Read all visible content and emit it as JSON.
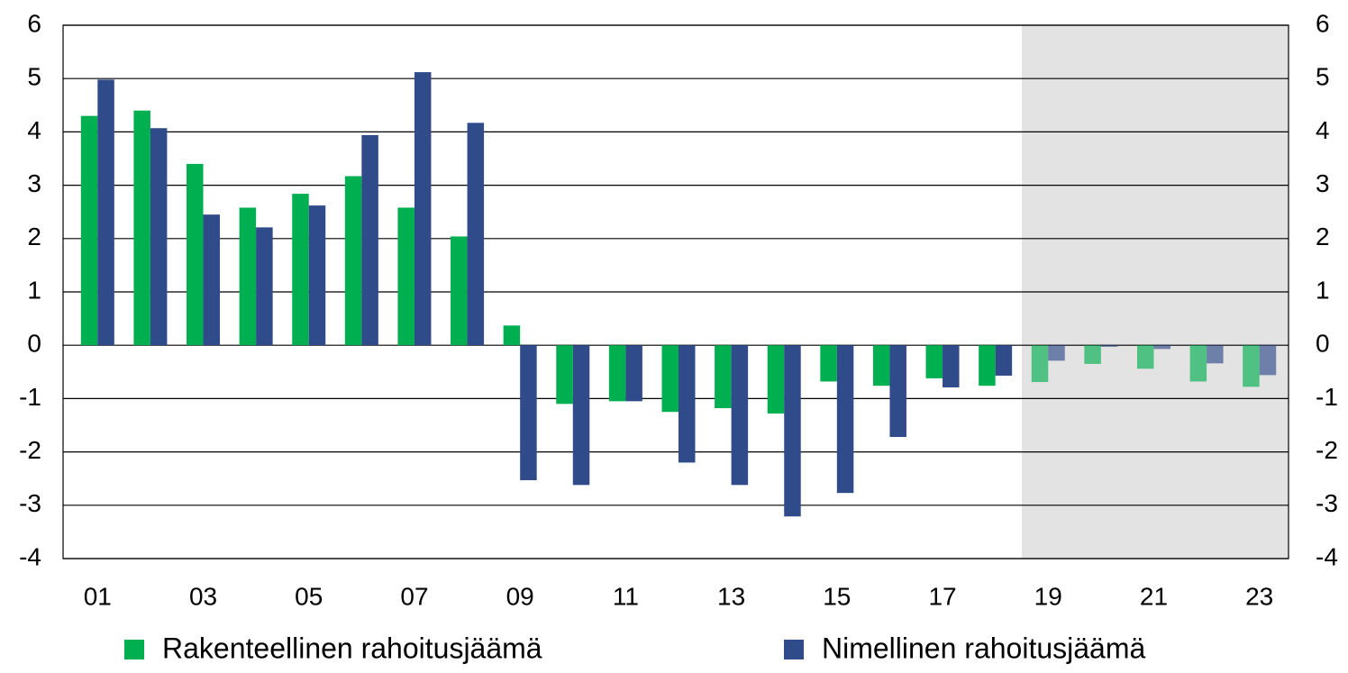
{
  "chart_data": {
    "type": "bar",
    "categories": [
      "01",
      null,
      "03",
      null,
      "05",
      null,
      "07",
      null,
      "09",
      null,
      "11",
      null,
      "13",
      null,
      "15",
      null,
      "17",
      null,
      "19",
      null,
      "21",
      null,
      "23"
    ],
    "series": [
      {
        "name": "Rakenteellinen rahoitusjäämä",
        "color": "#00b050",
        "values": [
          4.3,
          4.4,
          3.4,
          2.58,
          2.84,
          3.17,
          2.58,
          2.04,
          0.37,
          -1.1,
          -1.05,
          -1.25,
          -1.18,
          -1.28,
          -0.68,
          -0.76,
          -0.62,
          -0.76,
          -0.69,
          -0.35,
          -0.44,
          -0.68,
          -0.78
        ]
      },
      {
        "name": "Nimellinen rahoitusjäämä",
        "color": "#2f4b8a",
        "values": [
          4.98,
          4.07,
          2.45,
          2.21,
          2.62,
          3.94,
          5.12,
          4.17,
          -2.53,
          -2.62,
          -1.05,
          -2.2,
          -2.62,
          -3.21,
          -2.77,
          -1.72,
          -0.79,
          -0.57,
          -0.29,
          -0.03,
          -0.07,
          -0.34,
          -0.56
        ]
      }
    ],
    "ylim": [
      -4,
      6
    ],
    "yticks": [
      -4,
      -3,
      -2,
      -1,
      0,
      1,
      2,
      3,
      4,
      5,
      6
    ],
    "y2lim": [
      -4,
      6
    ],
    "y2ticks": [
      -4,
      -3,
      -2,
      -1,
      0,
      1,
      2,
      3,
      4,
      5,
      6
    ],
    "grid": true,
    "forecast_from": "19",
    "legend": "bottom"
  }
}
